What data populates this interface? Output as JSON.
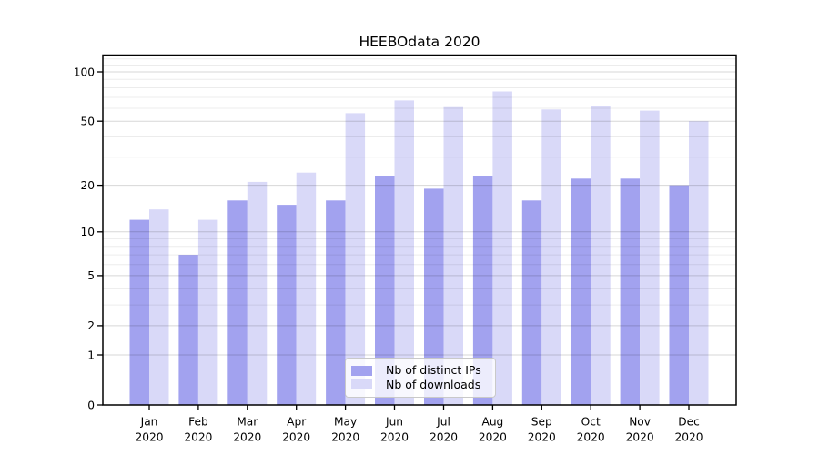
{
  "title": "HEEBOdata 2020",
  "legend": {
    "position": "lower center",
    "items": [
      {
        "label": "Nb of distinct IPs",
        "color": "#a2a2ef"
      },
      {
        "label": "Nb of downloads",
        "color": "#d9d9f8"
      }
    ]
  },
  "chart_data": {
    "type": "bar",
    "title": "HEEBOdata 2020",
    "categories": [
      "Jan",
      "Feb",
      "Mar",
      "Apr",
      "May",
      "Jun",
      "Jul",
      "Aug",
      "Sep",
      "Oct",
      "Nov",
      "Dec"
    ],
    "x_tick_year": "2020",
    "series": [
      {
        "name": "Nb of distinct IPs",
        "color": "#a2a2ef",
        "values": [
          12,
          7,
          16,
          15,
          16,
          23,
          19,
          23,
          16,
          22,
          22,
          20
        ]
      },
      {
        "name": "Nb of downloads",
        "color": "#d9d9f8",
        "values": [
          14,
          12,
          21,
          24,
          56,
          67,
          61,
          76,
          59,
          62,
          58,
          50
        ]
      }
    ],
    "xlabel": "",
    "ylabel": "",
    "y_scale": "symlog ln(1+v)",
    "y_ticks": [
      0,
      1,
      2,
      5,
      10,
      20,
      50,
      100
    ],
    "y_minor_ticks": [
      3,
      4,
      6,
      7,
      8,
      9,
      30,
      40,
      60,
      70,
      80,
      90,
      110,
      120
    ],
    "ylim": [
      0,
      126
    ],
    "grid": true,
    "legend_position": "lower center"
  },
  "colors": {
    "background": "#ffffff",
    "axis": "#000000",
    "grid_major": "#d8d8d8",
    "grid_minor": "#ececec",
    "tick_text": "#000000",
    "legend_border": "#c9c9c9"
  }
}
